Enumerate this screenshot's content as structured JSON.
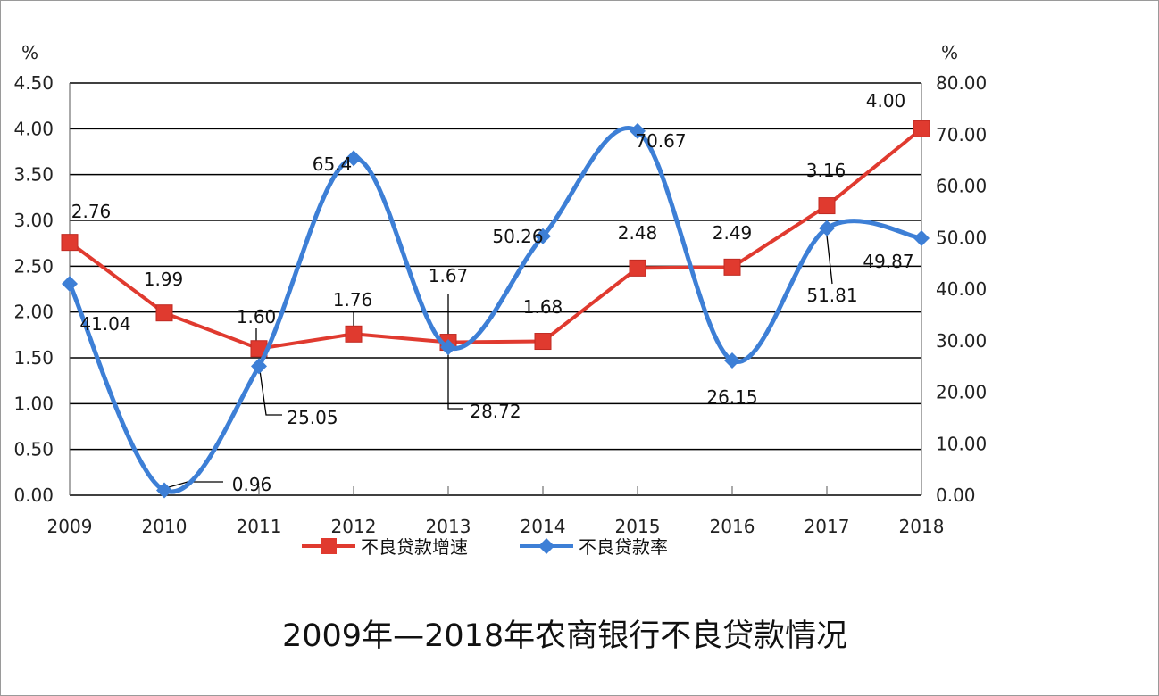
{
  "chart_data": {
    "type": "line",
    "title": "2009年—2018年农商银行不良贷款情况",
    "categories": [
      "2009",
      "2010",
      "2011",
      "2012",
      "2013",
      "2014",
      "2015",
      "2016",
      "2017",
      "2018"
    ],
    "left_axis": {
      "label": "%",
      "range": [
        0,
        4.5
      ],
      "ticks": [
        "0.00",
        "0.50",
        "1.00",
        "1.50",
        "2.00",
        "2.50",
        "3.00",
        "3.50",
        "4.00",
        "4.50"
      ]
    },
    "right_axis": {
      "label": "%",
      "range": [
        0,
        80
      ],
      "ticks": [
        "0.00",
        "10.00",
        "20.00",
        "30.00",
        "40.00",
        "50.00",
        "60.00",
        "70.00",
        "80.00"
      ]
    },
    "grid": true,
    "legend_position": "bottom",
    "series": [
      {
        "name": "不良贷款增速",
        "axis": "left",
        "color": "#e03a2f",
        "marker": "square",
        "smooth": false,
        "values": [
          2.76,
          1.99,
          1.6,
          1.76,
          1.67,
          1.68,
          2.48,
          2.49,
          3.16,
          4.0
        ],
        "labels": [
          "2.76",
          "1.99",
          "1.60",
          "1.76",
          "1.67",
          "1.68",
          "2.48",
          "2.49",
          "3.16",
          "4.00"
        ]
      },
      {
        "name": "不良贷款率",
        "axis": "right",
        "color": "#3d7fd6",
        "marker": "diamond",
        "smooth": true,
        "values": [
          41.04,
          0.96,
          25.05,
          65.4,
          28.72,
          50.26,
          70.67,
          26.15,
          51.81,
          49.87
        ],
        "labels": [
          "41.04",
          "0.96",
          "25.05",
          "65.4",
          "28.72",
          "50.26",
          "70.67",
          "26.15",
          "51.81",
          "49.87"
        ]
      }
    ]
  }
}
